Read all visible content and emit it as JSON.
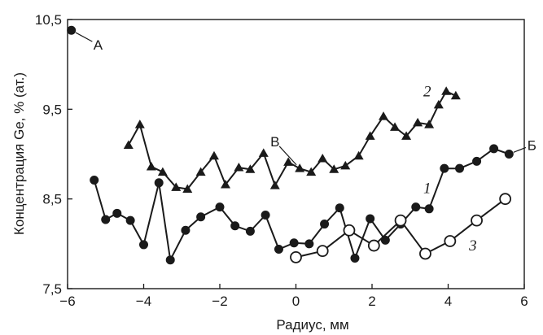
{
  "chart_data": {
    "type": "line",
    "title": "",
    "xlabel": "Радиус, мм",
    "ylabel": "Концентрация Ge, % (ат.)",
    "xlim": [
      -6,
      6
    ],
    "ylim": [
      7.5,
      10.5
    ],
    "xticks": [
      -6,
      -4,
      -2,
      0,
      2,
      4,
      6
    ],
    "xtick_labels": [
      "−6",
      "−4",
      "−2",
      "0",
      "2",
      "4",
      "6"
    ],
    "yticks": [
      7.5,
      8.5,
      9.5,
      10.5
    ],
    "ytick_labels": [
      "7,5",
      "8,5",
      "9,5",
      "10,5"
    ],
    "grid": false,
    "series": [
      {
        "name": "1",
        "marker": "filled-circle",
        "points": [
          [
            -5.3,
            8.71
          ],
          [
            -5.0,
            8.27
          ],
          [
            -4.7,
            8.34
          ],
          [
            -4.35,
            8.26
          ],
          [
            -4.0,
            7.99
          ],
          [
            -3.6,
            8.68
          ],
          [
            -3.3,
            7.82
          ],
          [
            -2.9,
            8.15
          ],
          [
            -2.5,
            8.3
          ],
          [
            -2.0,
            8.41
          ],
          [
            -1.6,
            8.2
          ],
          [
            -1.2,
            8.14
          ],
          [
            -0.8,
            8.32
          ],
          [
            -0.45,
            7.94
          ],
          [
            -0.05,
            8.01
          ],
          [
            0.35,
            8.0
          ],
          [
            0.75,
            8.22
          ],
          [
            1.15,
            8.4
          ],
          [
            1.55,
            7.84
          ],
          [
            1.95,
            8.28
          ],
          [
            2.35,
            8.04
          ],
          [
            2.75,
            8.22
          ],
          [
            3.15,
            8.41
          ],
          [
            3.5,
            8.39
          ],
          [
            3.9,
            8.84
          ],
          [
            4.3,
            8.84
          ],
          [
            4.75,
            8.92
          ],
          [
            5.2,
            9.06
          ],
          [
            5.6,
            9.0
          ]
        ]
      },
      {
        "name": "2",
        "marker": "filled-triangle",
        "points": [
          [
            -4.4,
            9.1
          ],
          [
            -4.1,
            9.33
          ],
          [
            -3.8,
            8.86
          ],
          [
            -3.5,
            8.8
          ],
          [
            -3.15,
            8.63
          ],
          [
            -2.85,
            8.61
          ],
          [
            -2.5,
            8.8
          ],
          [
            -2.15,
            8.98
          ],
          [
            -1.85,
            8.66
          ],
          [
            -1.5,
            8.85
          ],
          [
            -1.2,
            8.83
          ],
          [
            -0.85,
            9.01
          ],
          [
            -0.55,
            8.65
          ],
          [
            -0.2,
            8.91
          ],
          [
            0.1,
            8.84
          ],
          [
            0.4,
            8.8
          ],
          [
            0.7,
            8.95
          ],
          [
            1.0,
            8.83
          ],
          [
            1.3,
            8.87
          ],
          [
            1.65,
            8.98
          ],
          [
            1.95,
            9.2
          ],
          [
            2.3,
            9.42
          ],
          [
            2.6,
            9.3
          ],
          [
            2.9,
            9.2
          ],
          [
            3.2,
            9.35
          ],
          [
            3.5,
            9.33
          ],
          [
            3.75,
            9.55
          ],
          [
            3.95,
            9.7
          ],
          [
            4.2,
            9.65
          ]
        ]
      },
      {
        "name": "3",
        "marker": "open-circle",
        "points": [
          [
            0.0,
            7.85
          ],
          [
            0.7,
            7.92
          ],
          [
            1.4,
            8.15
          ],
          [
            2.05,
            7.98
          ],
          [
            2.75,
            8.26
          ],
          [
            3.4,
            7.89
          ],
          [
            4.05,
            8.03
          ],
          [
            4.75,
            8.26
          ],
          [
            5.5,
            8.5
          ]
        ]
      },
      {
        "name": "A",
        "marker": "filled-circle",
        "points": [
          [
            -5.9,
            10.38
          ]
        ]
      }
    ],
    "annotations": [
      {
        "text": "А",
        "point": [
          -5.9,
          10.38
        ],
        "label_at": [
          -5.2,
          10.22
        ]
      },
      {
        "text": "В",
        "point": [
          0.1,
          8.84
        ],
        "label_at": [
          -0.55,
          9.14
        ]
      },
      {
        "text": "Б",
        "point": [
          5.6,
          9.0
        ],
        "label_at": [
          6.2,
          9.1
        ]
      }
    ],
    "series_labels": [
      {
        "text": "1",
        "at": [
          3.45,
          8.62
        ]
      },
      {
        "text": "2",
        "at": [
          3.45,
          9.7
        ]
      },
      {
        "text": "3",
        "at": [
          4.65,
          7.98
        ]
      }
    ]
  }
}
